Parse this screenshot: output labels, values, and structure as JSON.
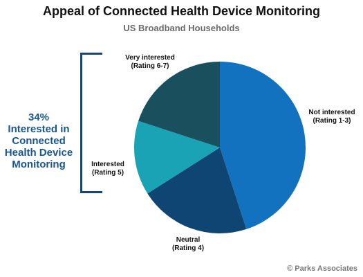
{
  "chart_data": {
    "type": "pie",
    "title": "Appeal of Connected Health Device Monitoring",
    "subtitle": "US Broadband Households",
    "slices": [
      {
        "label": [
          "Not interested",
          "(Rating 1-3)"
        ],
        "value": 45,
        "color": "#1272bf"
      },
      {
        "label": [
          "Neutral",
          "(Rating 4)"
        ],
        "value": 21,
        "color": "#0f4573"
      },
      {
        "label": [
          "Interested",
          "(Rating 5)"
        ],
        "value": 14,
        "color": "#19a3b5"
      },
      {
        "label": [
          "Very interested",
          "(Rating 6-7)"
        ],
        "value": 20,
        "color": "#1a4f5e"
      }
    ],
    "callout": {
      "lines": [
        "34%",
        "Interested in",
        "Connected",
        "Health Device",
        "Monitoring"
      ]
    },
    "source": "© Parks Associates"
  }
}
